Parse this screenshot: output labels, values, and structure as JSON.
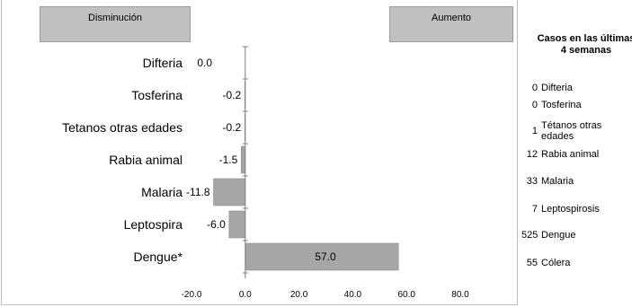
{
  "headers": {
    "decrease": "Disminución",
    "increase": "Aumento"
  },
  "chart_data": {
    "type": "bar",
    "orientation": "horizontal",
    "categories": [
      "Difteria",
      "Tosferina",
      "Tetanos otras edades",
      "Rabia animal",
      "Malaria",
      "Leptospira",
      "Dengue*"
    ],
    "values": [
      0.0,
      -0.2,
      -0.2,
      -1.5,
      -11.8,
      -6.0,
      57.0
    ],
    "value_labels": [
      "0.0",
      "-0.2",
      "-0.2",
      "-1.5",
      "-11.8",
      "-6.0",
      "57.0"
    ],
    "xticks": [
      "-20.0",
      "0.0",
      "20.0",
      "40.0",
      "60.0",
      "80.0"
    ],
    "xlim": [
      -20,
      80
    ],
    "grid": false,
    "bar_color": "#a6a6a6"
  },
  "side_table": {
    "title": "Casos en las últimas 4 semanas",
    "rows": [
      {
        "count": "0",
        "name": "Difteria"
      },
      {
        "count": "0",
        "name": "Tosferina"
      },
      {
        "count": "1",
        "name": "Tétanos otras edades"
      },
      {
        "count": "12",
        "name": "Rabia animal"
      },
      {
        "count": "33",
        "name": "Malaria"
      },
      {
        "count": "7",
        "name": "Leptospirosis"
      },
      {
        "count": "525",
        "name": "Dengue"
      },
      {
        "count": "55",
        "name": "Cólera"
      }
    ]
  }
}
